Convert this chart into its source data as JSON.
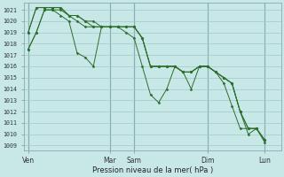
{
  "xlabel": "Pression niveau de la mer( hPa )",
  "bg_color": "#c8e8e8",
  "grid_color": "#a0c8c8",
  "line_color": "#2d6e2d",
  "ylim": [
    1008.6,
    1021.6
  ],
  "yticks": [
    1009,
    1010,
    1011,
    1012,
    1013,
    1014,
    1015,
    1016,
    1017,
    1018,
    1019,
    1020,
    1021
  ],
  "x_day_labels": [
    "Ven",
    "Mar",
    "Sam",
    "Dim",
    "Lun"
  ],
  "x_day_positions": [
    0,
    10,
    13,
    22,
    29
  ],
  "xlim": [
    -0.5,
    31
  ],
  "series1_x": [
    0,
    1,
    2,
    3,
    4,
    5,
    6,
    7,
    8,
    9,
    10,
    11,
    12,
    13,
    14,
    15,
    16,
    17,
    18,
    19,
    20,
    21,
    22,
    23,
    24,
    25,
    26,
    27,
    28,
    29
  ],
  "series1_y": [
    1017.5,
    1019,
    1021,
    1021,
    1021,
    1020.5,
    1020,
    1019.5,
    1019.5,
    1019.5,
    1019.5,
    1019.5,
    1019.5,
    1019.5,
    1018.5,
    1016,
    1016,
    1016,
    1016,
    1015.5,
    1015.5,
    1016,
    1016,
    1015.5,
    1015,
    1014.5,
    1012,
    1010,
    1010.5,
    1009.5
  ],
  "series2_x": [
    0,
    1,
    2,
    3,
    4,
    5,
    6,
    7,
    8,
    9,
    10,
    11,
    12,
    13,
    14,
    15,
    16,
    17,
    18,
    19,
    20,
    21,
    22,
    23,
    24,
    25,
    26,
    27,
    28,
    29
  ],
  "series2_y": [
    1019,
    1021.2,
    1021.2,
    1021.2,
    1021.2,
    1020.5,
    1020.5,
    1020,
    1019.5,
    1019.5,
    1019.5,
    1019.5,
    1019.5,
    1019.5,
    1018.5,
    1016,
    1016,
    1016,
    1016,
    1015.5,
    1015.5,
    1016,
    1016,
    1015.5,
    1015,
    1014.5,
    1012,
    1010.5,
    1010.5,
    1009.5
  ],
  "series3_x": [
    0,
    1,
    2,
    3,
    4,
    5,
    6,
    7,
    8,
    9,
    10,
    11,
    12,
    13,
    14,
    15,
    16,
    17,
    18,
    19,
    20,
    21,
    22,
    23,
    24,
    25,
    26,
    27,
    28,
    29
  ],
  "series3_y": [
    1019,
    1021.2,
    1021.2,
    1021.2,
    1021.2,
    1020.5,
    1020.5,
    1020,
    1020,
    1019.5,
    1019.5,
    1019.5,
    1019.5,
    1019.5,
    1018.5,
    1016,
    1016,
    1016,
    1016,
    1015.5,
    1015.5,
    1016,
    1016,
    1015.5,
    1015,
    1014.5,
    1012,
    1010.5,
    1010.5,
    1009.5
  ],
  "series4_x": [
    0,
    1,
    2,
    3,
    4,
    5,
    6,
    7,
    8,
    9,
    10,
    11,
    12,
    13,
    14,
    15,
    16,
    17,
    18,
    19,
    20,
    21,
    22,
    23,
    24,
    25,
    26,
    27,
    28,
    29
  ],
  "series4_y": [
    1017.5,
    1019,
    1021,
    1021,
    1020.5,
    1020,
    1017.2,
    1016.8,
    1016,
    1019.5,
    1019.5,
    1019.5,
    1019,
    1018.5,
    1016,
    1013.5,
    1012.8,
    1014.0,
    1016,
    1015.5,
    1014,
    1016,
    1016,
    1015.5,
    1014.5,
    1012.5,
    1010.5,
    1010.5,
    1010.5,
    1009.3
  ]
}
